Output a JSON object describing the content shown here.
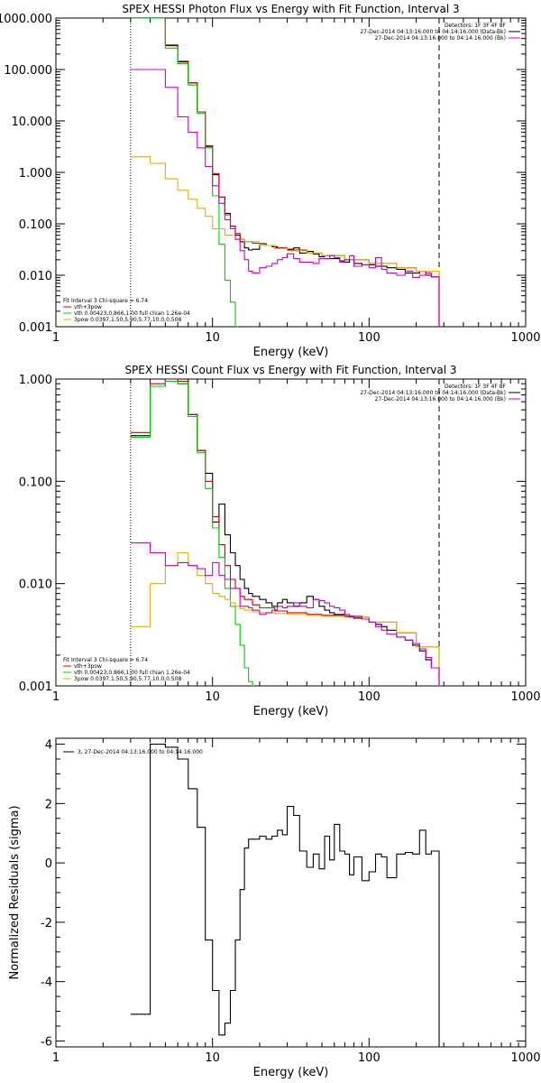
{
  "colors": {
    "data": "#000000",
    "sum": "#cc0000",
    "vth": "#00cc00",
    "3pow": "#e0b000",
    "mag": "#cc00cc",
    "bk": "#cc00cc"
  },
  "chart_data": [
    {
      "type": "line",
      "title": "SPEX HESSI Photon Flux vs Energy with Fit Function, Interval 3",
      "xlabel": "Energy (keV)",
      "ylabel": "",
      "xscale": "log",
      "yscale": "log",
      "xlim": [
        1,
        1000
      ],
      "ylim": [
        0.001,
        1000
      ],
      "xticks": [
        "1",
        "10",
        "100",
        "1000"
      ],
      "yticks": [
        "0.001",
        "0.010",
        "0.100",
        "1.000",
        "10.000",
        "100.000",
        "1000.000"
      ],
      "ytick_values": [
        0.001,
        0.01,
        0.1,
        1,
        10,
        100,
        1000
      ],
      "legend_tr": [
        "Detectors: 1F 3F 4F 8F",
        "27-Dec-2014 04:13:16.000 to 04:14:16.000 (Data-Bk)",
        "27-Dec-2014 04:13:16.000 to 04:14:16.000 (Bk)"
      ],
      "legend_tr_colors": [
        "",
        "#000000",
        "#cc00cc"
      ],
      "legend_bl": [
        "Fit Interval 3   Chi-square = 6.74",
        "vth+3pow",
        "vth 0.00423,0.866,1.00  full chian 1.26e-04",
        "3pow 0.0397,1.50,5.90,5.77,10.0,0.508"
      ],
      "legend_bl_colors": [
        "",
        "#cc0000",
        "#00cc00",
        "#e0b000"
      ],
      "dashed_x": 280,
      "dotted_x": 3,
      "series": [
        {
          "name": "(Data-Bk)",
          "color": "#000000",
          "x": [
            3,
            4,
            5,
            6,
            7,
            8,
            9,
            10,
            11,
            12,
            13,
            14,
            15,
            16,
            17,
            18,
            20,
            22,
            24,
            26,
            28,
            30,
            33,
            36,
            40,
            44,
            48,
            52,
            56,
            60,
            65,
            70,
            75,
            80,
            90,
            100,
            110,
            120,
            130,
            150,
            170,
            190,
            210,
            230,
            250,
            280
          ],
          "y": [
            1000,
            1000,
            290,
            140,
            55,
            15,
            3.2,
            0.9,
            0.33,
            0.16,
            0.09,
            0.06,
            0.045,
            0.034,
            0.031,
            0.032,
            0.041,
            0.038,
            0.036,
            0.034,
            0.033,
            0.032,
            0.034,
            0.027,
            0.029,
            0.026,
            0.023,
            0.024,
            0.021,
            0.021,
            0.019,
            0.018,
            0.02,
            0.017,
            0.016,
            0.016,
            0.015,
            0.015,
            0.014,
            0.013,
            0.011,
            0.011,
            0.012,
            0.01,
            0.0093,
            0.001
          ]
        },
        {
          "name": "vth+3pow",
          "color": "#cc0000",
          "x": [
            3,
            4,
            5,
            6,
            7,
            8,
            9,
            10,
            11,
            12,
            13,
            14,
            15,
            16,
            18,
            20,
            25,
            30,
            40,
            50,
            70,
            100,
            150,
            200,
            280
          ],
          "y": [
            1000,
            1000,
            300,
            145,
            55,
            15,
            3.3,
            0.95,
            0.33,
            0.15,
            0.09,
            0.065,
            0.05,
            0.045,
            0.042,
            0.038,
            0.034,
            0.031,
            0.027,
            0.024,
            0.02,
            0.017,
            0.014,
            0.012,
            0.001
          ]
        },
        {
          "name": "vth",
          "color": "#00cc00",
          "x": [
            3,
            4,
            5,
            6,
            7,
            8,
            9,
            10,
            11,
            12,
            13,
            14
          ],
          "y": [
            1000,
            1000,
            260,
            130,
            50,
            14,
            3,
            0.35,
            0.04,
            0.008,
            0.003,
            0.001
          ]
        },
        {
          "name": "3pow",
          "color": "#e0b000",
          "x": [
            3,
            4,
            5,
            6,
            7,
            8,
            9,
            10,
            12,
            14,
            16,
            20,
            25,
            30,
            40,
            50,
            70,
            100,
            150,
            200,
            280
          ],
          "y": [
            2,
            1.5,
            0.75,
            0.45,
            0.3,
            0.2,
            0.14,
            0.08,
            0.06,
            0.05,
            0.045,
            0.038,
            0.033,
            0.03,
            0.027,
            0.024,
            0.02,
            0.017,
            0.014,
            0.012,
            0.001
          ]
        },
        {
          "name": "(Bk)",
          "color": "#cc00cc",
          "x": [
            3,
            4,
            5,
            6,
            7,
            8,
            9,
            10,
            11,
            12,
            13,
            14,
            15,
            16,
            17,
            18,
            20,
            22,
            24,
            26,
            28,
            30,
            33,
            36,
            40,
            44,
            48,
            52,
            56,
            60,
            65,
            70,
            75,
            80,
            90,
            100,
            110,
            120,
            130,
            150,
            170,
            190,
            210,
            230,
            250,
            280
          ],
          "y": [
            100,
            100,
            45,
            12,
            6,
            3,
            1.3,
            0.55,
            0.25,
            0.12,
            0.08,
            0.05,
            0.03,
            0.02,
            0.012,
            0.011,
            0.014,
            0.015,
            0.017,
            0.02,
            0.022,
            0.026,
            0.021,
            0.018,
            0.018,
            0.017,
            0.021,
            0.021,
            0.024,
            0.022,
            0.018,
            0.02,
            0.024,
            0.015,
            0.016,
            0.014,
            0.022,
            0.013,
            0.011,
            0.01,
            0.012,
            0.009,
            0.01,
            0.011,
            0.0093,
            0.001
          ]
        }
      ]
    },
    {
      "type": "line",
      "title": "SPEX HESSI Count Flux vs Energy with Fit Function, Interval 3",
      "xlabel": "Energy (keV)",
      "ylabel": "",
      "xscale": "log",
      "yscale": "log",
      "xlim": [
        1,
        1000
      ],
      "ylim": [
        0.001,
        1
      ],
      "xticks": [
        "1",
        "10",
        "100",
        "1000"
      ],
      "yticks": [
        "0.001",
        "0.010",
        "0.100",
        "1.000"
      ],
      "ytick_values": [
        0.001,
        0.01,
        0.1,
        1
      ],
      "legend_tr": [
        "Detectors: 1F 3F 4F 8F",
        "27-Dec-2014 04:13:16.000 to 04:14:16.000 (Data-Bk)",
        "27-Dec-2014 04:13:16.000 to 04:14:16.000 (Bk)"
      ],
      "legend_tr_colors": [
        "",
        "#000000",
        "#cc00cc"
      ],
      "legend_bl": [
        "Fit Interval 3   Chi-square = 6.74",
        "vth+3pow",
        "vth 0.00423,0.866,1.00  full chian 1.26e-04",
        "3pow 0.0397,1.50,5.90,5.77,10.0,0.508"
      ],
      "legend_bl_colors": [
        "",
        "#cc0000",
        "#00cc00",
        "#e0b000"
      ],
      "dashed_x": 280,
      "dotted_x": 3,
      "series": [
        {
          "name": "(Data-Bk)",
          "color": "#000000",
          "x": [
            3,
            4,
            5,
            6,
            7,
            8,
            9,
            10,
            11,
            12,
            13,
            14,
            15,
            16,
            17,
            18,
            20,
            22,
            24,
            26,
            28,
            30,
            33,
            36,
            40,
            44,
            48,
            52,
            56,
            60,
            65,
            70,
            75,
            80,
            90,
            100,
            110,
            120,
            130,
            150,
            170,
            190,
            210,
            230,
            250,
            280
          ],
          "y": [
            0.28,
            0.85,
            0.95,
            0.9,
            0.45,
            0.2,
            0.12,
            0.04,
            0.06,
            0.03,
            0.02,
            0.015,
            0.011,
            0.009,
            0.008,
            0.0075,
            0.007,
            0.0065,
            0.006,
            0.0065,
            0.007,
            0.0065,
            0.006,
            0.0065,
            0.0075,
            0.007,
            0.006,
            0.0055,
            0.0052,
            0.005,
            0.005,
            0.0048,
            0.0048,
            0.0046,
            0.0045,
            0.0042,
            0.004,
            0.0038,
            0.0035,
            0.003,
            0.0028,
            0.0025,
            0.0022,
            0.0018,
            0.0015,
            0.001
          ]
        },
        {
          "name": "vth+3pow",
          "color": "#cc0000",
          "x": [
            3,
            4,
            5,
            6,
            7,
            8,
            9,
            10,
            11,
            12,
            13,
            14,
            15,
            16,
            18,
            20,
            25,
            30,
            40,
            50,
            70,
            100,
            150,
            200,
            280
          ],
          "y": [
            0.3,
            0.9,
            1,
            0.95,
            0.45,
            0.2,
            0.1,
            0.045,
            0.024,
            0.015,
            0.011,
            0.009,
            0.0075,
            0.007,
            0.0062,
            0.0058,
            0.0054,
            0.0052,
            0.005,
            0.0049,
            0.0047,
            0.0042,
            0.0033,
            0.0024,
            0.001
          ]
        },
        {
          "name": "vth",
          "color": "#00cc00",
          "x": [
            3,
            4,
            5,
            6,
            7,
            8,
            9,
            10,
            11,
            12,
            13,
            14,
            15,
            16,
            17,
            18
          ],
          "y": [
            0.27,
            0.85,
            0.95,
            0.9,
            0.43,
            0.19,
            0.085,
            0.035,
            0.018,
            0.009,
            0.006,
            0.004,
            0.0025,
            0.0015,
            0.0011,
            0.001
          ]
        },
        {
          "name": "3pow",
          "color": "#e0b000",
          "x": [
            3,
            4,
            5,
            6,
            7,
            8,
            9,
            10,
            11,
            12,
            13,
            14,
            15,
            16,
            18,
            20,
            25,
            30,
            40,
            50,
            70,
            100,
            150,
            200,
            280
          ],
          "y": [
            0.0038,
            0.01,
            0.015,
            0.02,
            0.015,
            0.012,
            0.01,
            0.008,
            0.0075,
            0.007,
            0.0065,
            0.006,
            0.0057,
            0.0055,
            0.0053,
            0.0052,
            0.0051,
            0.005,
            0.0049,
            0.0048,
            0.0047,
            0.0042,
            0.0033,
            0.0024,
            0.001
          ]
        },
        {
          "name": "(Bk)",
          "color": "#cc00cc",
          "x": [
            3,
            4,
            5,
            6,
            7,
            8,
            9,
            10,
            11,
            12,
            13,
            14,
            15,
            16,
            17,
            18,
            20,
            22,
            24,
            26,
            28,
            30,
            33,
            36,
            40,
            44,
            48,
            52,
            56,
            60,
            65,
            70,
            75,
            80,
            90,
            100,
            110,
            120,
            130,
            150,
            170,
            190,
            210,
            230,
            250,
            280
          ],
          "y": [
            0.025,
            0.02,
            0.015,
            0.016,
            0.015,
            0.014,
            0.012,
            0.016,
            0.012,
            0.011,
            0.009,
            0.009,
            0.006,
            0.006,
            0.0058,
            0.0055,
            0.005,
            0.0052,
            0.0055,
            0.006,
            0.0058,
            0.006,
            0.0065,
            0.006,
            0.0058,
            0.007,
            0.0068,
            0.0065,
            0.006,
            0.0058,
            0.0055,
            0.005,
            0.0047,
            0.0048,
            0.0045,
            0.0042,
            0.0038,
            0.0035,
            0.0032,
            0.003,
            0.0028,
            0.0026,
            0.0023,
            0.0019,
            0.0015,
            0.001
          ]
        }
      ]
    },
    {
      "type": "line",
      "title": "",
      "xlabel": "Energy (keV)",
      "ylabel": "Normalized Residuals (sigma)",
      "xscale": "log",
      "yscale": "linear",
      "xlim": [
        1,
        1000
      ],
      "ylim": [
        -6.2,
        4.2
      ],
      "xticks": [
        "1",
        "10",
        "100",
        "1000"
      ],
      "yticks": [
        "-6",
        "-4",
        "-2",
        "0",
        "2",
        "4"
      ],
      "ytick_values": [
        -6,
        -4,
        -2,
        0,
        2,
        4
      ],
      "legend_tl": [
        "3, 27-Dec-2014 04:13:16.000 to 04:14:16.000"
      ],
      "series": [
        {
          "name": "3, 27-Dec-2014 04:13:16.000 to 04:14:16.000",
          "color": "#000000",
          "x": [
            3,
            4,
            5,
            6,
            7,
            8,
            9,
            10,
            11,
            12,
            13,
            14,
            15,
            16,
            17,
            18,
            20,
            22,
            24,
            26,
            28,
            30,
            33,
            36,
            40,
            44,
            48,
            52,
            56,
            60,
            65,
            70,
            75,
            80,
            90,
            100,
            110,
            120,
            130,
            150,
            170,
            190,
            210,
            230,
            250,
            280
          ],
          "y": [
            -5.1,
            4,
            3.9,
            3.5,
            2.5,
            1.2,
            -2.6,
            -4.3,
            -5.8,
            -5.4,
            -4.3,
            -2.6,
            -0.9,
            0.5,
            0.8,
            0.8,
            0.9,
            0.8,
            0.9,
            1.1,
            0.95,
            1.9,
            1.6,
            0.4,
            -0.15,
            0.3,
            -0.2,
            0.9,
            0.1,
            1.3,
            0.4,
            0.3,
            -0.4,
            0.2,
            -0.6,
            -0.3,
            0.3,
            0.2,
            -0.5,
            0.3,
            0.35,
            0.3,
            1.1,
            0.3,
            0.4,
            -6.2
          ]
        }
      ]
    }
  ]
}
